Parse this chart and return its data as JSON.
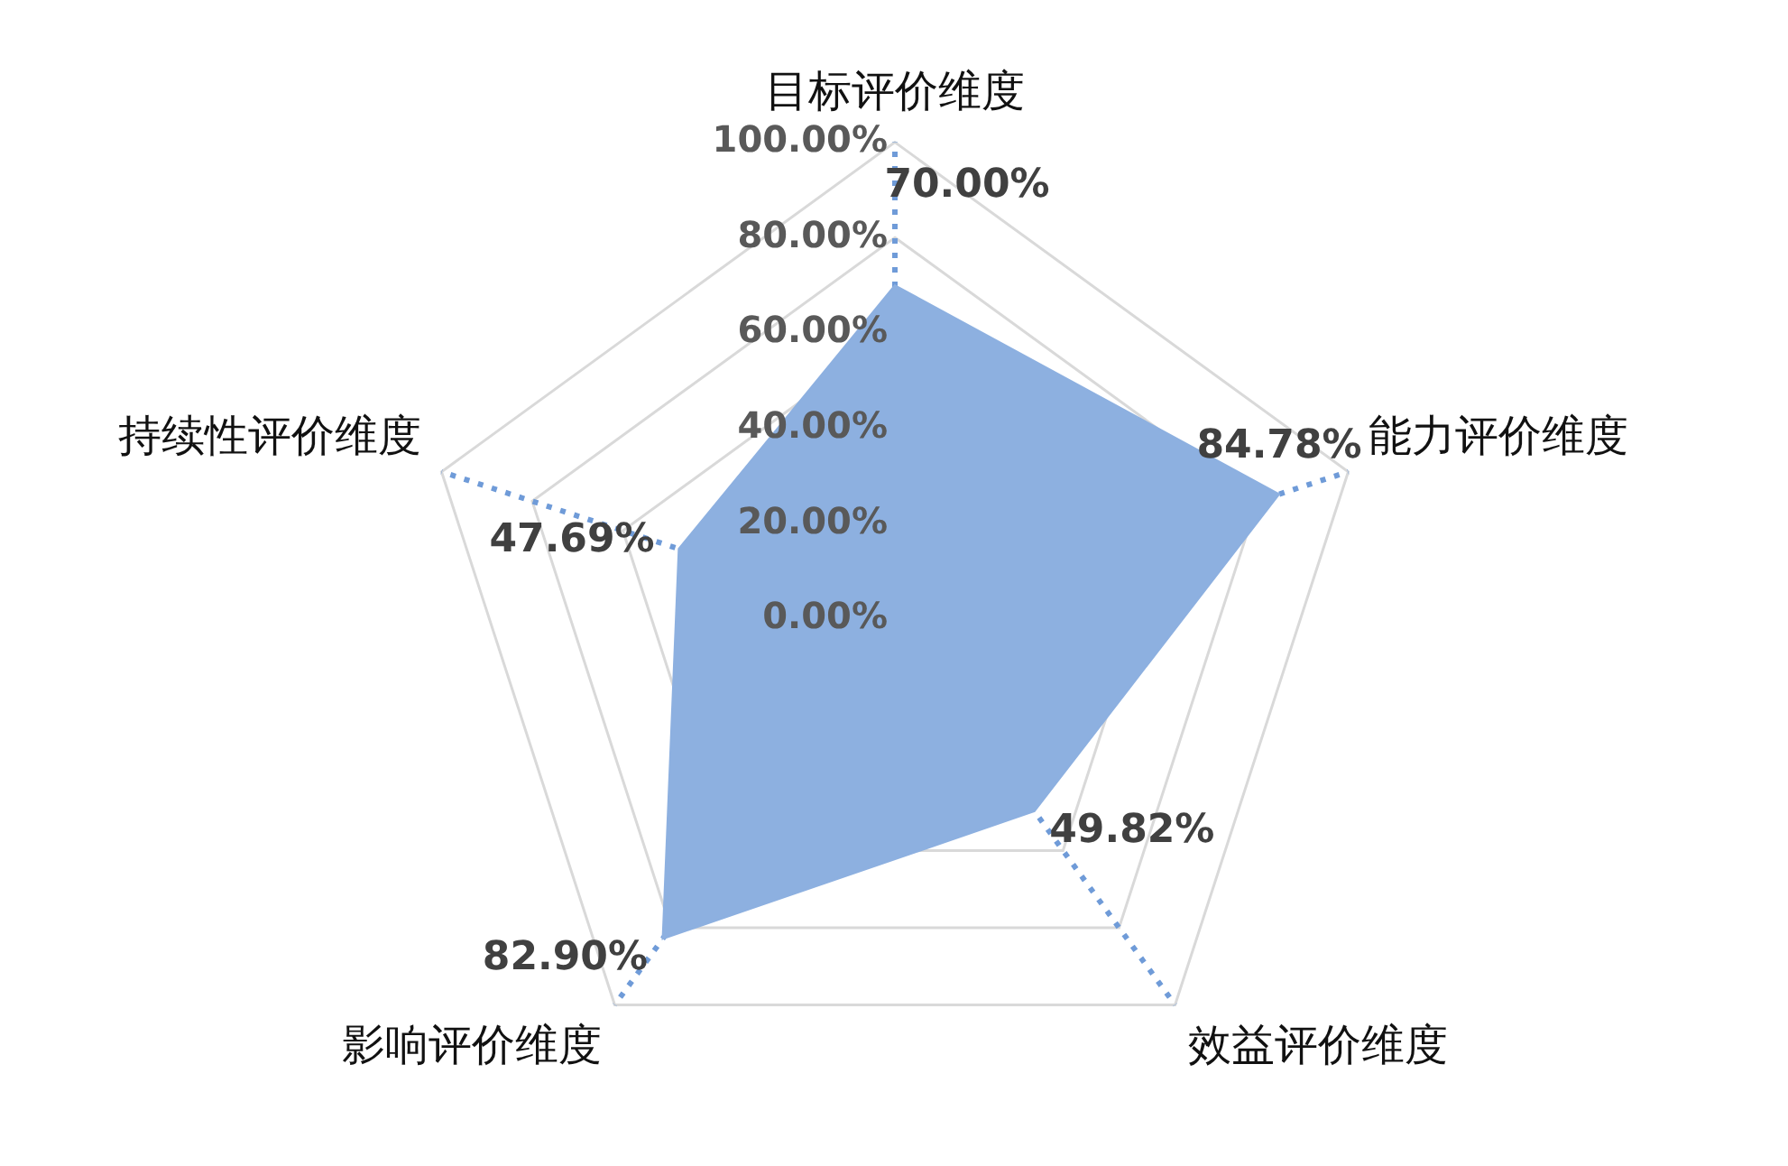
{
  "chart_data": {
    "type": "radar",
    "categories": [
      "目标评价维度",
      "能力评价维度",
      "效益评价维度",
      "影响评价维度",
      "持续性评价维度"
    ],
    "series": [
      {
        "color": "#8db0e0",
        "values": [
          70,
          84.78,
          49.82,
          82.9,
          47.69
        ],
        "value_labels": [
          "70.00%",
          "84.78%",
          "49.82%",
          "82.90%",
          "47.69%"
        ]
      }
    ],
    "ylim": [
      0,
      100
    ],
    "yticks": [
      {
        "value": 0,
        "label": "0.00%"
      },
      {
        "value": 20,
        "label": "20.00%"
      },
      {
        "value": 40,
        "label": "40.00%"
      },
      {
        "value": 60,
        "label": "60.00%"
      },
      {
        "value": 80,
        "label": "80.00%"
      },
      {
        "value": 100,
        "label": "100.00%"
      }
    ],
    "grid": true,
    "legend": false,
    "marker": "none"
  }
}
